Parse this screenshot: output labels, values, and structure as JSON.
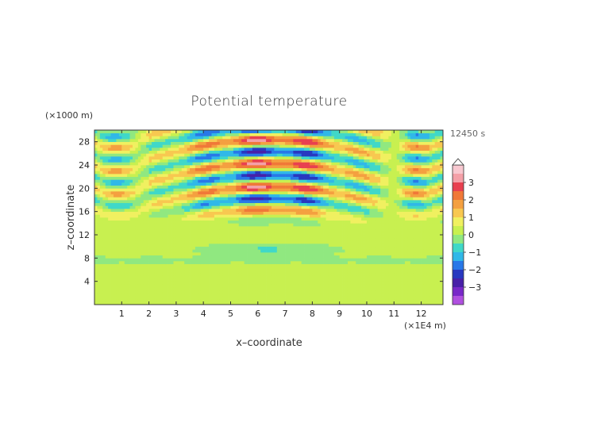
{
  "chart_data": {
    "type": "heatmap",
    "title": "Potential temperature",
    "xlabel": "x–coordinate",
    "ylabel": "z–coordinate",
    "x_unit": "(×1E4 m)",
    "y_unit": "(×1000 m)",
    "time_label": "12450 s",
    "xlim": [
      0,
      12.8
    ],
    "ylim": [
      0,
      30
    ],
    "x_ticks": [
      "1",
      "2",
      "3",
      "4",
      "5",
      "6",
      "7",
      "8",
      "9",
      "10",
      "11",
      "12"
    ],
    "y_ticks": [
      "4",
      "8",
      "12",
      "16",
      "20",
      "24",
      "28"
    ],
    "x_tick_values": [
      1,
      2,
      3,
      4,
      5,
      6,
      7,
      8,
      9,
      10,
      11,
      12
    ],
    "y_tick_values": [
      4,
      8,
      12,
      16,
      20,
      24,
      28
    ],
    "colorbar": {
      "labels": [
        "3",
        "2",
        "1",
        "0",
        "−1",
        "−2",
        "−3"
      ],
      "label_values": [
        3,
        2,
        1,
        0,
        -1,
        -2,
        -3
      ],
      "range": [
        -4,
        4
      ],
      "levels": [
        {
          "from": 3.5,
          "to": 4.0,
          "color": "#f8c8d0"
        },
        {
          "from": 3.0,
          "to": 3.5,
          "color": "#f4a0a8"
        },
        {
          "from": 2.5,
          "to": 3.0,
          "color": "#e84050"
        },
        {
          "from": 2.0,
          "to": 2.5,
          "color": "#f07838"
        },
        {
          "from": 1.5,
          "to": 2.0,
          "color": "#f4a040"
        },
        {
          "from": 1.0,
          "to": 1.5,
          "color": "#f8c850"
        },
        {
          "from": 0.5,
          "to": 1.0,
          "color": "#f0f060"
        },
        {
          "from": 0.0,
          "to": 0.5,
          "color": "#c8f050"
        },
        {
          "from": -0.5,
          "to": 0.0,
          "color": "#90e880"
        },
        {
          "from": -1.0,
          "to": -0.5,
          "color": "#40d8c8"
        },
        {
          "from": -1.5,
          "to": -1.0,
          "color": "#30b8e8"
        },
        {
          "from": -2.0,
          "to": -1.5,
          "color": "#2878e8"
        },
        {
          "from": -2.5,
          "to": -2.0,
          "color": "#2838c0"
        },
        {
          "from": -3.0,
          "to": -2.5,
          "color": "#4820a8"
        },
        {
          "from": -3.5,
          "to": -3.0,
          "color": "#7828c8"
        },
        {
          "from": -4.0,
          "to": -3.5,
          "color": "#b050e0"
        }
      ]
    },
    "field_description": "Gravity-wave pattern: near-zero values below about 14 km, alternating positive/negative bands aloft centered near x=6.5, with extrema of about ±3 between 18 and 28 km."
  }
}
